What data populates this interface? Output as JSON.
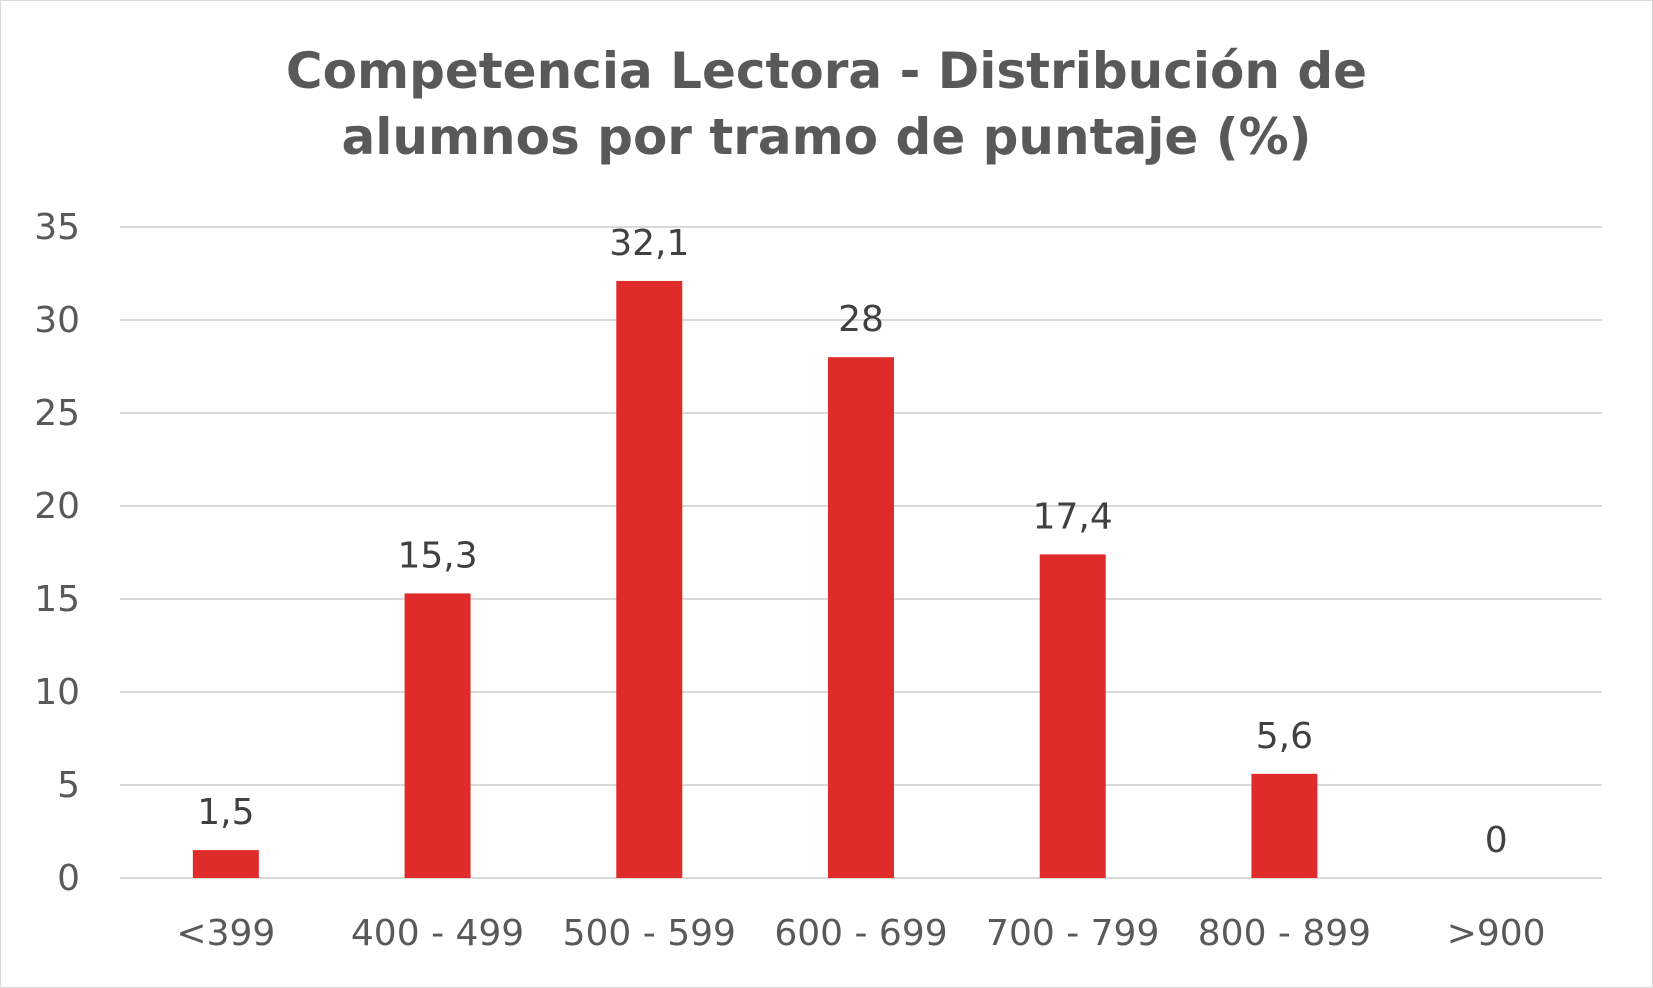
{
  "chart_data": {
    "type": "bar",
    "title_lines": [
      "Competencia Lectora - Distribución de",
      "alumnos por tramo de puntaje (%)"
    ],
    "categories": [
      "<399",
      "400 - 499",
      "500 - 599",
      "600 - 699",
      "700 - 799",
      "800 - 899",
      ">900"
    ],
    "values": [
      1.5,
      15.3,
      32.1,
      28,
      17.4,
      5.6,
      0
    ],
    "data_labels": [
      "1,5",
      "15,3",
      "32,1",
      "28",
      "17,4",
      "5,6",
      "0"
    ],
    "y_ticks": [
      0,
      5,
      10,
      15,
      20,
      25,
      30,
      35
    ],
    "ylim": [
      0,
      35
    ],
    "xlabel": "",
    "ylabel": "",
    "grid": true,
    "legend": "none",
    "bar_color": "#e02b2b",
    "grid_color": "#d9d9d9",
    "text_color": "#595959"
  }
}
